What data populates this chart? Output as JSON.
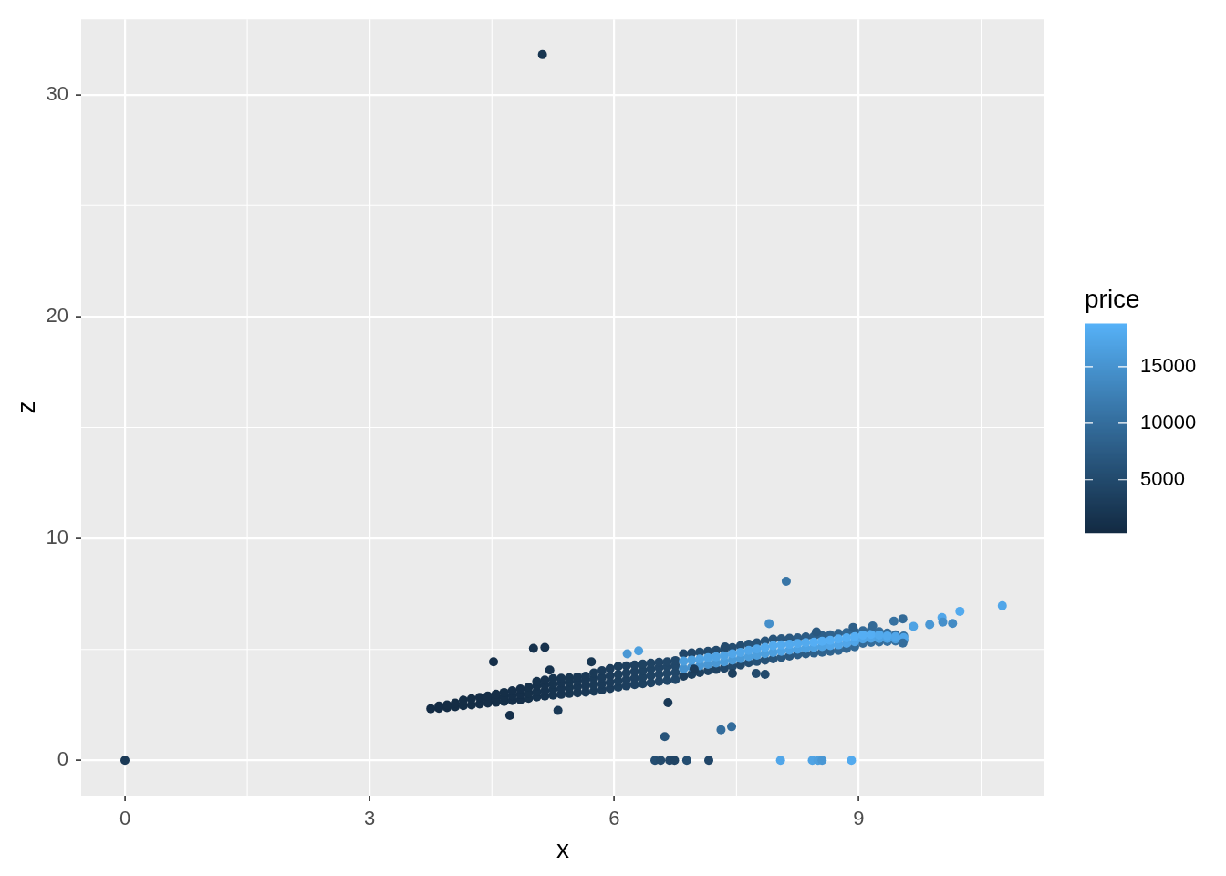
{
  "chart_data": {
    "type": "scatter",
    "xlabel": "x",
    "ylabel": "z",
    "clabel": "price",
    "xlim": [
      -0.537,
      11.277
    ],
    "ylim": [
      -1.59,
      33.39
    ],
    "xticks": [
      0,
      3,
      6,
      9
    ],
    "yticks": [
      0,
      10,
      20,
      30
    ],
    "clim": [
      326,
      18823
    ],
    "cticks": [
      5000,
      10000,
      15000
    ],
    "grid": true,
    "marker": "circle",
    "x": [
      3.75,
      3.85,
      3.85,
      3.95,
      3.95,
      4.05,
      4.05,
      4.15,
      4.15,
      4.25,
      4.25,
      4.35,
      4.35,
      4.45,
      4.45,
      4.45,
      4.55,
      4.55,
      4.55,
      4.65,
      4.65,
      4.65,
      4.75,
      4.75,
      4.75,
      4.85,
      4.85,
      4.85,
      4.95,
      4.95,
      4.95,
      5.05,
      5.05,
      5.05,
      5.05,
      5.15,
      5.15,
      5.15,
      5.15,
      5.25,
      5.25,
      5.25,
      5.25,
      5.35,
      5.35,
      5.35,
      5.35,
      5.45,
      5.45,
      5.45,
      5.45,
      5.55,
      5.55,
      5.55,
      5.55,
      5.65,
      5.65,
      5.65,
      5.65,
      5.75,
      5.75,
      5.75,
      5.75,
      5.85,
      5.85,
      5.85,
      5.85,
      5.95,
      5.95,
      5.95,
      5.95,
      6.05,
      6.05,
      6.05,
      6.05,
      6.15,
      6.15,
      6.15,
      6.15,
      6.25,
      6.25,
      6.25,
      6.25,
      6.35,
      6.35,
      6.35,
      6.35,
      6.45,
      6.45,
      6.45,
      6.45,
      6.55,
      6.55,
      6.55,
      6.55,
      6.65,
      6.65,
      6.65,
      6.65,
      6.75,
      6.75,
      6.75,
      6.75,
      6.85,
      6.85,
      6.95,
      6.95,
      7.05,
      7.05,
      7.15,
      7.15,
      7.25,
      7.25,
      7.35,
      7.35,
      7.45,
      7.45,
      7.55,
      7.55,
      7.65,
      7.65,
      7.75,
      7.75,
      7.85,
      7.85,
      7.95,
      7.95,
      8.05,
      8.05,
      8.15,
      8.15,
      8.25,
      8.25,
      8.35,
      8.35,
      8.45,
      8.45,
      8.55,
      8.55,
      8.65,
      8.65,
      8.75,
      8.75,
      8.85,
      8.85,
      8.95,
      8.95,
      9.05,
      9.05,
      9.15,
      9.15,
      9.25,
      9.25,
      9.35,
      9.35,
      9.45,
      9.45,
      9.55,
      9.55,
      6.85,
      6.85,
      6.95,
      6.95,
      7.05,
      7.05,
      7.15,
      7.15,
      7.25,
      7.25,
      7.35,
      7.35,
      7.45,
      7.45,
      7.55,
      7.55,
      7.65,
      7.65,
      7.75,
      7.75,
      7.85,
      7.85,
      7.95,
      7.95,
      8.05,
      8.05,
      8.15,
      8.15,
      8.25,
      8.25,
      8.35,
      8.35,
      8.45,
      8.45,
      8.55,
      8.55,
      8.65,
      8.65,
      8.75,
      8.75,
      8.85,
      8.85,
      8.95,
      8.95,
      9.05,
      9.05,
      9.15,
      9.15,
      9.25,
      9.25,
      9.35,
      9.35,
      9.45,
      9.45,
      9.55,
      9.55,
      0,
      5.12,
      4.52,
      5.01,
      5.15,
      5.21,
      5.72,
      4.72,
      5.31,
      6.66,
      6.62,
      6.5,
      6.57,
      6.68,
      6.74,
      6.89,
      7.16,
      7.31,
      7.44,
      6.98,
      7.45,
      7.74,
      7.85,
      7.36,
      8.48,
      8.11,
      9.43,
      9.54,
      9.54,
      8.93,
      9.17,
      6.16,
      6.3,
      7.9,
      8.04,
      8.43,
      8.5,
      8.55,
      8.91,
      9.67,
      9.87,
      10.02,
      10.03,
      10.15,
      10.24,
      10.76
    ],
    "values": [
      2.33,
      2.35,
      2.45,
      2.38,
      2.5,
      2.42,
      2.58,
      2.47,
      2.72,
      2.5,
      2.78,
      2.54,
      2.84,
      2.58,
      2.74,
      2.9,
      2.62,
      2.8,
      2.98,
      2.66,
      2.86,
      3.06,
      2.7,
      2.92,
      3.14,
      2.74,
      2.98,
      3.22,
      2.8,
      3.04,
      3.3,
      2.86,
      3.1,
      3.36,
      3.56,
      2.9,
      3.14,
      3.4,
      3.62,
      2.94,
      3.2,
      3.44,
      3.68,
      2.98,
      3.24,
      3.5,
      3.7,
      3.02,
      3.28,
      3.54,
      3.72,
      3.05,
      3.32,
      3.58,
      3.76,
      3.08,
      3.36,
      3.62,
      3.8,
      3.12,
      3.4,
      3.68,
      3.94,
      3.18,
      3.46,
      3.74,
      4.04,
      3.24,
      3.52,
      3.82,
      4.14,
      3.3,
      3.58,
      3.88,
      4.24,
      3.36,
      3.64,
      3.94,
      4.26,
      3.42,
      3.7,
      4.0,
      4.3,
      3.46,
      3.76,
      4.06,
      4.34,
      3.5,
      3.82,
      4.12,
      4.38,
      3.56,
      3.88,
      4.18,
      4.42,
      3.6,
      3.92,
      4.22,
      4.44,
      3.64,
      3.96,
      4.26,
      4.5,
      3.8,
      4.8,
      3.88,
      4.84,
      3.96,
      4.88,
      4.04,
      4.92,
      4.1,
      4.96,
      4.16,
      5.0,
      4.24,
      5.08,
      4.3,
      5.16,
      4.4,
      5.24,
      4.46,
      5.3,
      4.52,
      5.38,
      4.58,
      5.46,
      4.64,
      5.48,
      4.7,
      5.5,
      4.76,
      5.52,
      4.8,
      5.56,
      4.84,
      5.58,
      4.88,
      5.62,
      4.92,
      5.66,
      4.96,
      5.72,
      5.04,
      5.76,
      5.12,
      5.8,
      5.28,
      5.84,
      5.32,
      5.86,
      5.34,
      5.8,
      5.36,
      5.74,
      5.38,
      5.66,
      5.4,
      5.6,
      4.13,
      4.47,
      4.2,
      4.52,
      4.27,
      4.57,
      4.33,
      4.63,
      4.39,
      4.67,
      4.44,
      4.72,
      4.52,
      4.8,
      4.59,
      4.87,
      4.68,
      4.96,
      4.74,
      5.02,
      4.81,
      5.09,
      4.87,
      5.17,
      4.92,
      5.2,
      4.97,
      5.23,
      5.01,
      5.27,
      5.05,
      5.31,
      5.09,
      5.33,
      5.13,
      5.37,
      5.17,
      5.41,
      5.21,
      5.47,
      5.28,
      5.52,
      5.35,
      5.57,
      5.47,
      5.65,
      5.5,
      5.68,
      5.49,
      5.65,
      5.49,
      5.61,
      5.47,
      5.57,
      5.47,
      5.53,
      0,
      31.8,
      4.44,
      5.05,
      5.09,
      4.07,
      4.44,
      2.03,
      2.25,
      2.6,
      1.07,
      0,
      0,
      0,
      0,
      0,
      0,
      1.38,
      1.52,
      4.11,
      3.92,
      3.92,
      3.88,
      5.11,
      5.79,
      8.07,
      6.27,
      6.38,
      5.29,
      5.99,
      6.06,
      4.8,
      4.94,
      6.16,
      0,
      0,
      0,
      0,
      0,
      6.04,
      6.12,
      6.44,
      6.23,
      6.17,
      6.72,
      6.97
    ],
    "cvalues": [
      400,
      400,
      400,
      500,
      500,
      500,
      500,
      600,
      600,
      600,
      600,
      700,
      700,
      800,
      800,
      800,
      800,
      800,
      800,
      900,
      900,
      900,
      1000,
      1000,
      1000,
      1000,
      1000,
      1000,
      1200,
      1200,
      1200,
      1400,
      1400,
      1400,
      1400,
      1500,
      1500,
      1500,
      1500,
      1700,
      1700,
      1700,
      1700,
      1900,
      1900,
      1900,
      1900,
      2000,
      2000,
      2000,
      2000,
      2200,
      2200,
      2200,
      2200,
      2400,
      2400,
      2400,
      2400,
      2600,
      2600,
      2600,
      2600,
      2800,
      2800,
      2800,
      2800,
      3000,
      3000,
      3000,
      3000,
      3200,
      3200,
      3200,
      3200,
      3400,
      3400,
      3400,
      3400,
      3600,
      3600,
      3600,
      3600,
      3800,
      3800,
      3800,
      3800,
      4000,
      4000,
      4000,
      4000,
      4200,
      4200,
      4200,
      4200,
      4400,
      4400,
      4400,
      4400,
      4600,
      4600,
      4600,
      4600,
      3000,
      4500,
      3500,
      4500,
      3500,
      5000,
      4000,
      5000,
      4000,
      5000,
      4500,
      5500,
      5000,
      5500,
      5000,
      5500,
      5500,
      6000,
      6000,
      6000,
      6000,
      6500,
      6500,
      6500,
      7000,
      7000,
      7000,
      7000,
      7500,
      7500,
      7500,
      7500,
      8000,
      8000,
      8500,
      8000,
      8500,
      8500,
      9000,
      8500,
      9000,
      9000,
      9500,
      9000,
      9500,
      9500,
      10000,
      9500,
      10000,
      10000,
      10500,
      10000,
      10500,
      10000,
      11000,
      10500,
      15000,
      16500,
      15000,
      16500,
      15500,
      17000,
      15500,
      17000,
      15500,
      17000,
      16000,
      17000,
      16000,
      17500,
      16000,
      17500,
      16500,
      17500,
      16500,
      17500,
      16500,
      18000,
      16500,
      18000,
      17000,
      18000,
      17000,
      18000,
      17000,
      18000,
      17000,
      18000,
      17000,
      18500,
      17000,
      18500,
      17500,
      18500,
      17500,
      18500,
      17500,
      18500,
      17500,
      18500,
      17500,
      18500,
      17500,
      18500,
      17000,
      18000,
      17000,
      18000,
      16500,
      17500,
      16500,
      17500,
      2500,
      2000,
      1000,
      1500,
      1500,
      1500,
      2000,
      1000,
      2500,
      2500,
      6500,
      5500,
      5000,
      4500,
      4000,
      5500,
      4500,
      10000,
      10000,
      3000,
      3500,
      5000,
      5000,
      5000,
      7000,
      11000,
      10500,
      9500,
      10000,
      8000,
      9500,
      15500,
      16500,
      14500,
      17500,
      17000,
      16500,
      15500,
      18000,
      17000,
      15500,
      17500,
      14500,
      14000,
      18000,
      17500
    ]
  }
}
